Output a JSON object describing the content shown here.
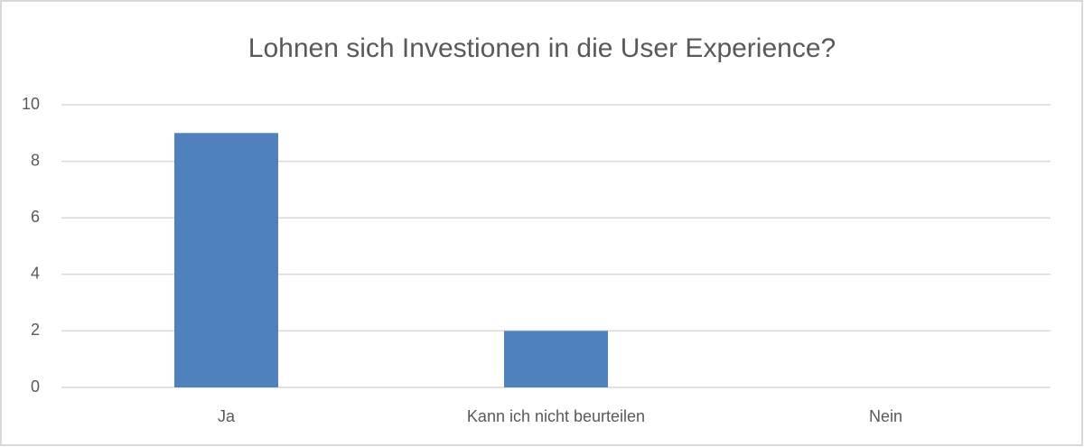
{
  "chart_data": {
    "type": "bar",
    "title": "Lohnen sich Investionen in die User Experience?",
    "categories": [
      "Ja",
      "Kann ich nicht beurteilen",
      "Nein"
    ],
    "values": [
      9,
      2,
      0
    ],
    "color": "#4f81bd",
    "ylim": [
      0,
      10
    ],
    "yticks": [
      0,
      2,
      4,
      6,
      8,
      10
    ],
    "grid": true
  }
}
